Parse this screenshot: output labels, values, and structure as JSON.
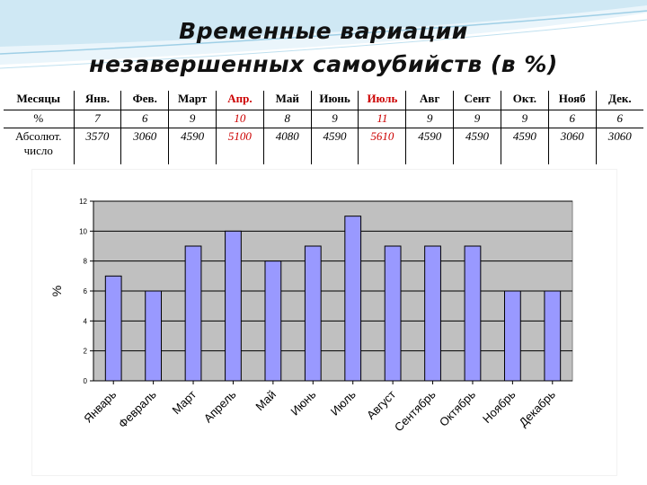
{
  "title": {
    "line1": "Временные вариации",
    "line2": "незавершенных самоубийств (в %)"
  },
  "table": {
    "header": [
      "Месяцы",
      "Янв.",
      "Фев.",
      "Март",
      "Апр.",
      "Май",
      "Июнь",
      "Июль",
      "Авг",
      "Сент",
      "Окт.",
      "Нояб",
      "Дек."
    ],
    "pct_label": "%",
    "pct": [
      "7",
      "6",
      "9",
      "10",
      "8",
      "9",
      "11",
      "9",
      "9",
      "9",
      "6",
      "6"
    ],
    "abs_label_1": "Абсолют.",
    "abs_label_2": "число",
    "abs": [
      "3570",
      "3060",
      "4590",
      "5100",
      "4080",
      "4590",
      "5610",
      "4590",
      "4590",
      "4590",
      "3060",
      "3060"
    ],
    "highlight_color": "#cc0000"
  },
  "chart_data": {
    "type": "bar",
    "categories": [
      "Январь",
      "Февраль",
      "Март",
      "Апрель",
      "Май",
      "Июнь",
      "Июль",
      "Август",
      "Сентябрь",
      "Октябрь",
      "Ноябрь",
      "Декабрь"
    ],
    "values": [
      7,
      6,
      9,
      10,
      8,
      9,
      11,
      9,
      9,
      9,
      6,
      6
    ],
    "ylabel": "%",
    "ylim": [
      0,
      12
    ],
    "yticks": [
      0,
      2,
      4,
      6,
      8,
      10,
      12
    ],
    "grid": true,
    "plot_background": "#c0c0c0",
    "bar_color": "#9999ff"
  }
}
